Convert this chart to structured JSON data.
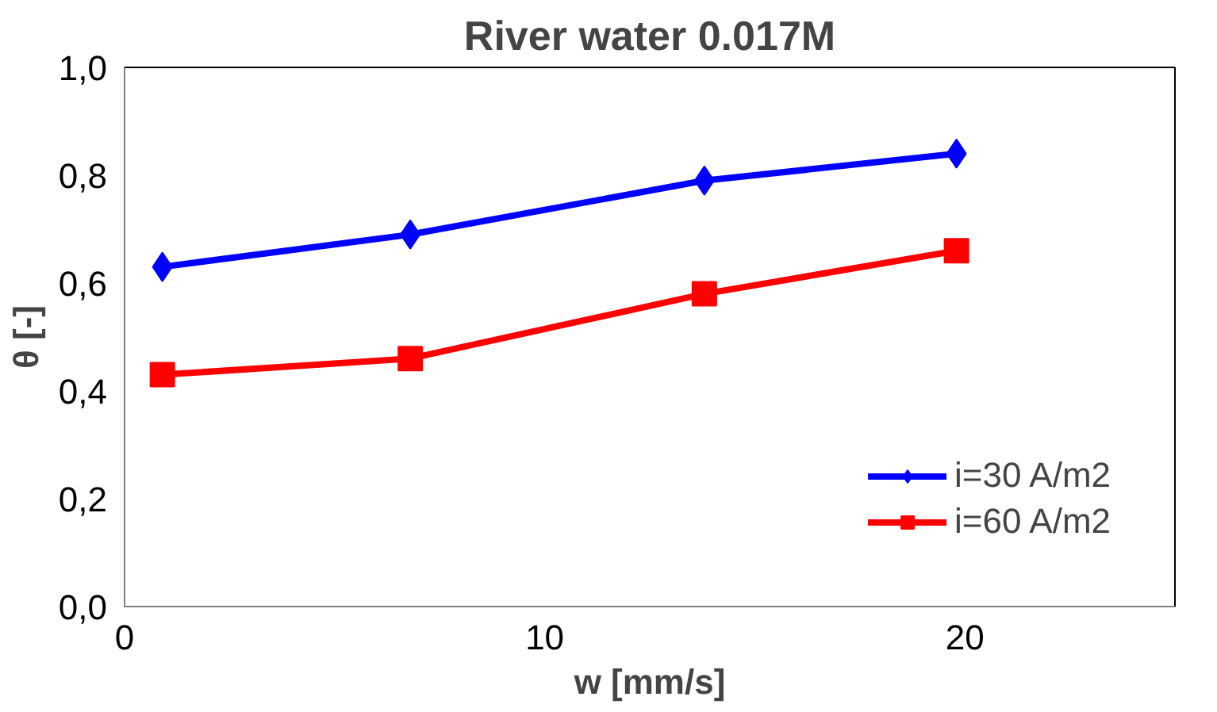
{
  "chart_data": {
    "type": "line",
    "title": "River water 0.017M",
    "xlabel": "w [mm/s]",
    "ylabel": "θ [-]",
    "xlim": [
      0,
      25
    ],
    "ylim": [
      0,
      1
    ],
    "xticks": [
      0,
      10,
      20
    ],
    "yticks": [
      {
        "value": 0,
        "label": "0,0"
      },
      {
        "value": 0.2,
        "label": "0,2"
      },
      {
        "value": 0.4,
        "label": "0,4"
      },
      {
        "value": 0.6,
        "label": "0,6"
      },
      {
        "value": 0.8,
        "label": "0,8"
      },
      {
        "value": 1,
        "label": "1,0"
      }
    ],
    "grid": false,
    "legend": "bottom right",
    "line_style": "solid",
    "series": [
      {
        "name": "i=30 A/m2",
        "color": "#0000ff",
        "marker": "diamond",
        "x": [
          0.9,
          6.8,
          13.8,
          19.8
        ],
        "values": [
          0.63,
          0.69,
          0.79,
          0.84
        ]
      },
      {
        "name": "i=60 A/m2",
        "color": "#ff0000",
        "marker": "square",
        "x": [
          0.9,
          6.8,
          13.8,
          19.8
        ],
        "values": [
          0.43,
          0.46,
          0.58,
          0.66
        ]
      }
    ]
  }
}
